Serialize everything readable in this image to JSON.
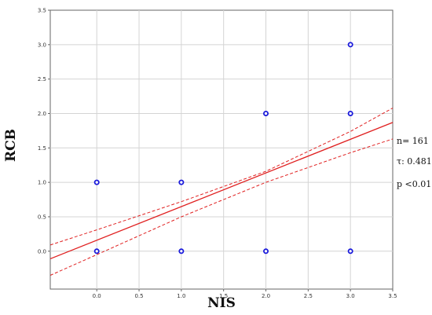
{
  "chart_data": {
    "type": "scatter",
    "xlabel": "NIS",
    "ylabel": "RCB",
    "xlim": [
      -0.55,
      3.5
    ],
    "ylim": [
      -0.55,
      3.5
    ],
    "x_ticks": [
      "0.0",
      "0.5",
      "1.0",
      "1.5",
      "2.0",
      "2.5",
      "3.0",
      "3.5"
    ],
    "y_ticks": [
      "0.0",
      "0.5",
      "1.0",
      "1.5",
      "2.0",
      "2.5",
      "3.0",
      "3.5"
    ],
    "grid": true,
    "points": [
      {
        "x": 0,
        "y": 0
      },
      {
        "x": 0,
        "y": 1
      },
      {
        "x": 1,
        "y": 0
      },
      {
        "x": 1,
        "y": 1
      },
      {
        "x": 2,
        "y": 0
      },
      {
        "x": 2,
        "y": 2
      },
      {
        "x": 3,
        "y": 0
      },
      {
        "x": 3,
        "y": 2
      },
      {
        "x": 3,
        "y": 3
      }
    ],
    "fit_line": {
      "x": [
        -0.55,
        3.5
      ],
      "y": [
        -0.11,
        1.87
      ]
    },
    "confidence_upper": {
      "x": [
        -0.55,
        0,
        1,
        2,
        3,
        3.5
      ],
      "y": [
        0.09,
        0.31,
        0.72,
        1.16,
        1.74,
        2.08
      ]
    },
    "confidence_lower": {
      "x": [
        -0.55,
        0,
        1,
        2,
        3,
        3.5
      ],
      "y": [
        -0.35,
        -0.05,
        0.5,
        1.0,
        1.43,
        1.63
      ]
    },
    "annotations": [
      "n= 161",
      "τ: 0.481",
      "p <0.01"
    ],
    "colors": {
      "points": "#1a1adb",
      "fit": "#e02020",
      "grid": "#d4d4d4",
      "axes": "#666666"
    }
  }
}
